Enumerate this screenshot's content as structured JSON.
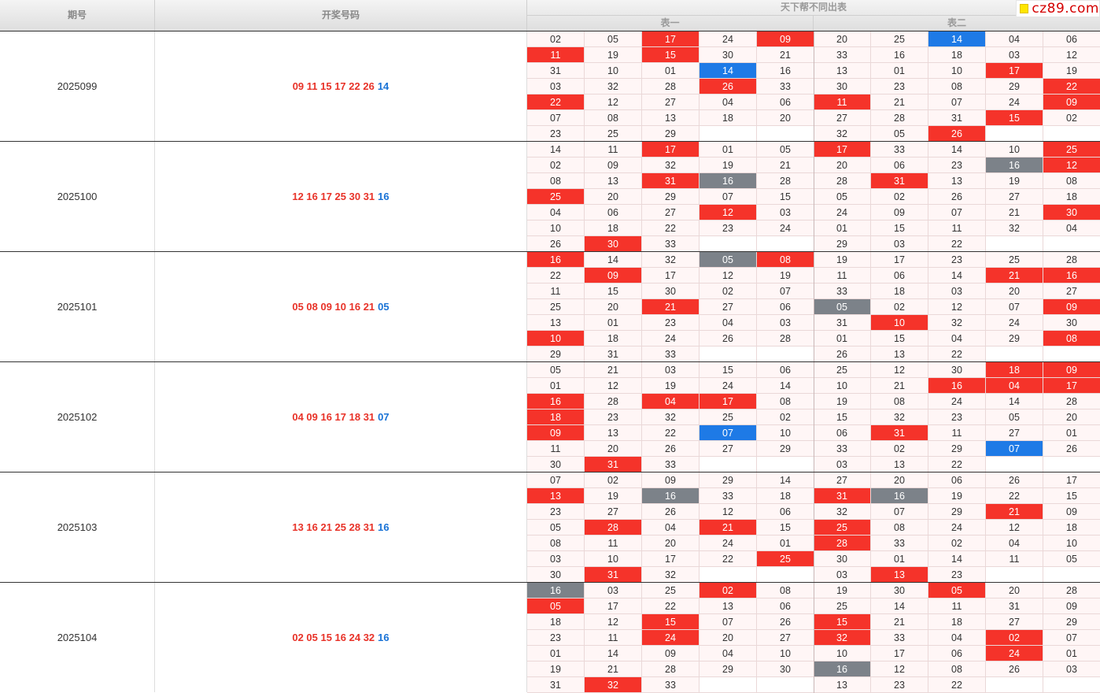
{
  "header": {
    "period_label": "期号",
    "draw_label": "开奖号码",
    "table_title": "天下帮不同出表",
    "table1_label": "表一",
    "table2_label": "表二",
    "logo_text": "cz89.com"
  },
  "colors": {
    "hit_red": "#f5332a",
    "hit_blue": "#1e7ae6",
    "hit_gray": "#7c8289",
    "red_text": "#e83228",
    "blue_text": "#1a73d6"
  },
  "periods": [
    {
      "id": "2025099",
      "red": "09 11 15 17 22 26",
      "blue": "14",
      "t1": [
        [
          "02",
          "05",
          "17r",
          "24",
          "09r"
        ],
        [
          "11r",
          "19",
          "15r",
          "30",
          "21"
        ],
        [
          "31",
          "10",
          "01",
          "14b",
          "16"
        ],
        [
          "03",
          "32",
          "28",
          "26r",
          "33"
        ],
        [
          "22r",
          "12",
          "27",
          "04",
          "06"
        ],
        [
          "07",
          "08",
          "13",
          "18",
          "20"
        ],
        [
          "23",
          "25",
          "29",
          "",
          ""
        ]
      ],
      "t2": [
        [
          "20",
          "25",
          "14b",
          "04",
          "06"
        ],
        [
          "33",
          "16",
          "18",
          "03",
          "12"
        ],
        [
          "13",
          "01",
          "10",
          "17r",
          "19"
        ],
        [
          "30",
          "23",
          "08",
          "29",
          "22r"
        ],
        [
          "11r",
          "21",
          "07",
          "24",
          "09r"
        ],
        [
          "27",
          "28",
          "31",
          "15r",
          "02"
        ],
        [
          "32",
          "05",
          "26r",
          "",
          ""
        ]
      ]
    },
    {
      "id": "2025100",
      "red": "12 16 17 25 30 31",
      "blue": "16",
      "t1": [
        [
          "14",
          "11",
          "17r",
          "01",
          "05"
        ],
        [
          "02",
          "09",
          "32",
          "19",
          "21"
        ],
        [
          "08",
          "13",
          "31r",
          "16g",
          "28"
        ],
        [
          "25r",
          "20",
          "29",
          "07",
          "15"
        ],
        [
          "04",
          "06",
          "27",
          "12r",
          "03"
        ],
        [
          "10",
          "18",
          "22",
          "23",
          "24"
        ],
        [
          "26",
          "30r",
          "33",
          "",
          ""
        ]
      ],
      "t2": [
        [
          "17r",
          "33",
          "14",
          "10",
          "25r"
        ],
        [
          "20",
          "06",
          "23",
          "16g",
          "12r"
        ],
        [
          "28",
          "31r",
          "13",
          "19",
          "08"
        ],
        [
          "05",
          "02",
          "26",
          "27",
          "18"
        ],
        [
          "24",
          "09",
          "07",
          "21",
          "30r"
        ],
        [
          "01",
          "15",
          "11",
          "32",
          "04"
        ],
        [
          "29",
          "03",
          "22",
          "",
          ""
        ]
      ]
    },
    {
      "id": "2025101",
      "red": "05 08 09 10 16 21",
      "blue": "05",
      "t1": [
        [
          "16r",
          "14",
          "32",
          "05g",
          "08r"
        ],
        [
          "22",
          "09r",
          "17",
          "12",
          "19"
        ],
        [
          "11",
          "15",
          "30",
          "02",
          "07"
        ],
        [
          "25",
          "20",
          "21r",
          "27",
          "06"
        ],
        [
          "13",
          "01",
          "23",
          "04",
          "03"
        ],
        [
          "10r",
          "18",
          "24",
          "26",
          "28"
        ],
        [
          "29",
          "31",
          "33",
          "",
          ""
        ]
      ],
      "t2": [
        [
          "19",
          "17",
          "23",
          "25",
          "28"
        ],
        [
          "11",
          "06",
          "14",
          "21r",
          "16r"
        ],
        [
          "33",
          "18",
          "03",
          "20",
          "27"
        ],
        [
          "05g",
          "02",
          "12",
          "07",
          "09r"
        ],
        [
          "31",
          "10r",
          "32",
          "24",
          "30"
        ],
        [
          "01",
          "15",
          "04",
          "29",
          "08r"
        ],
        [
          "26",
          "13",
          "22",
          "",
          ""
        ]
      ]
    },
    {
      "id": "2025102",
      "red": "04 09 16 17 18 31",
      "blue": "07",
      "t1": [
        [
          "05",
          "21",
          "03",
          "15",
          "06"
        ],
        [
          "01",
          "12",
          "19",
          "24",
          "14"
        ],
        [
          "16r",
          "28",
          "04r",
          "17r",
          "08"
        ],
        [
          "18r",
          "23",
          "32",
          "25",
          "02"
        ],
        [
          "09r",
          "13",
          "22",
          "07b",
          "10"
        ],
        [
          "11",
          "20",
          "26",
          "27",
          "29"
        ],
        [
          "30",
          "31r",
          "33",
          "",
          ""
        ]
      ],
      "t2": [
        [
          "25",
          "12",
          "30",
          "18r",
          "09r"
        ],
        [
          "10",
          "21",
          "16r",
          "04r",
          "17r"
        ],
        [
          "19",
          "08",
          "24",
          "14",
          "28"
        ],
        [
          "15",
          "32",
          "23",
          "05",
          "20"
        ],
        [
          "06",
          "31r",
          "11",
          "27",
          "01"
        ],
        [
          "33",
          "02",
          "29",
          "07b",
          "26"
        ],
        [
          "03",
          "13",
          "22",
          "",
          ""
        ]
      ]
    },
    {
      "id": "2025103",
      "red": "13 16 21 25 28 31",
      "blue": "16",
      "t1": [
        [
          "07",
          "02",
          "09",
          "29",
          "14"
        ],
        [
          "13r",
          "19",
          "16g",
          "33",
          "18"
        ],
        [
          "23",
          "27",
          "26",
          "12",
          "06"
        ],
        [
          "05",
          "28r",
          "04",
          "21r",
          "15"
        ],
        [
          "08",
          "11",
          "20",
          "24",
          "01"
        ],
        [
          "03",
          "10",
          "17",
          "22",
          "25r"
        ],
        [
          "30",
          "31r",
          "32",
          "",
          ""
        ]
      ],
      "t2": [
        [
          "27",
          "20",
          "06",
          "26",
          "17"
        ],
        [
          "31r",
          "16g",
          "19",
          "22",
          "15"
        ],
        [
          "32",
          "07",
          "29",
          "21r",
          "09"
        ],
        [
          "25r",
          "08",
          "24",
          "12",
          "18"
        ],
        [
          "28r",
          "33",
          "02",
          "04",
          "10"
        ],
        [
          "30",
          "01",
          "14",
          "11",
          "05"
        ],
        [
          "03",
          "13r",
          "23",
          "",
          ""
        ]
      ]
    },
    {
      "id": "2025104",
      "red": "02 05 15 16 24 32",
      "blue": "16",
      "t1": [
        [
          "16g",
          "03",
          "25",
          "02r",
          "08"
        ],
        [
          "05r",
          "17",
          "22",
          "13",
          "06"
        ],
        [
          "18",
          "12",
          "15r",
          "07",
          "26"
        ],
        [
          "23",
          "11",
          "24r",
          "20",
          "27"
        ],
        [
          "01",
          "14",
          "09",
          "04",
          "10"
        ],
        [
          "19",
          "21",
          "28",
          "29",
          "30"
        ],
        [
          "31",
          "32r",
          "33",
          "",
          ""
        ]
      ],
      "t2": [
        [
          "19",
          "30",
          "05r",
          "20",
          "28"
        ],
        [
          "25",
          "14",
          "11",
          "31",
          "09"
        ],
        [
          "15r",
          "21",
          "18",
          "27",
          "29"
        ],
        [
          "32r",
          "33",
          "04",
          "02r",
          "07"
        ],
        [
          "10",
          "17",
          "06",
          "24r",
          "01"
        ],
        [
          "16g",
          "12",
          "08",
          "26",
          "03"
        ],
        [
          "13",
          "23",
          "22",
          "",
          ""
        ]
      ]
    }
  ]
}
